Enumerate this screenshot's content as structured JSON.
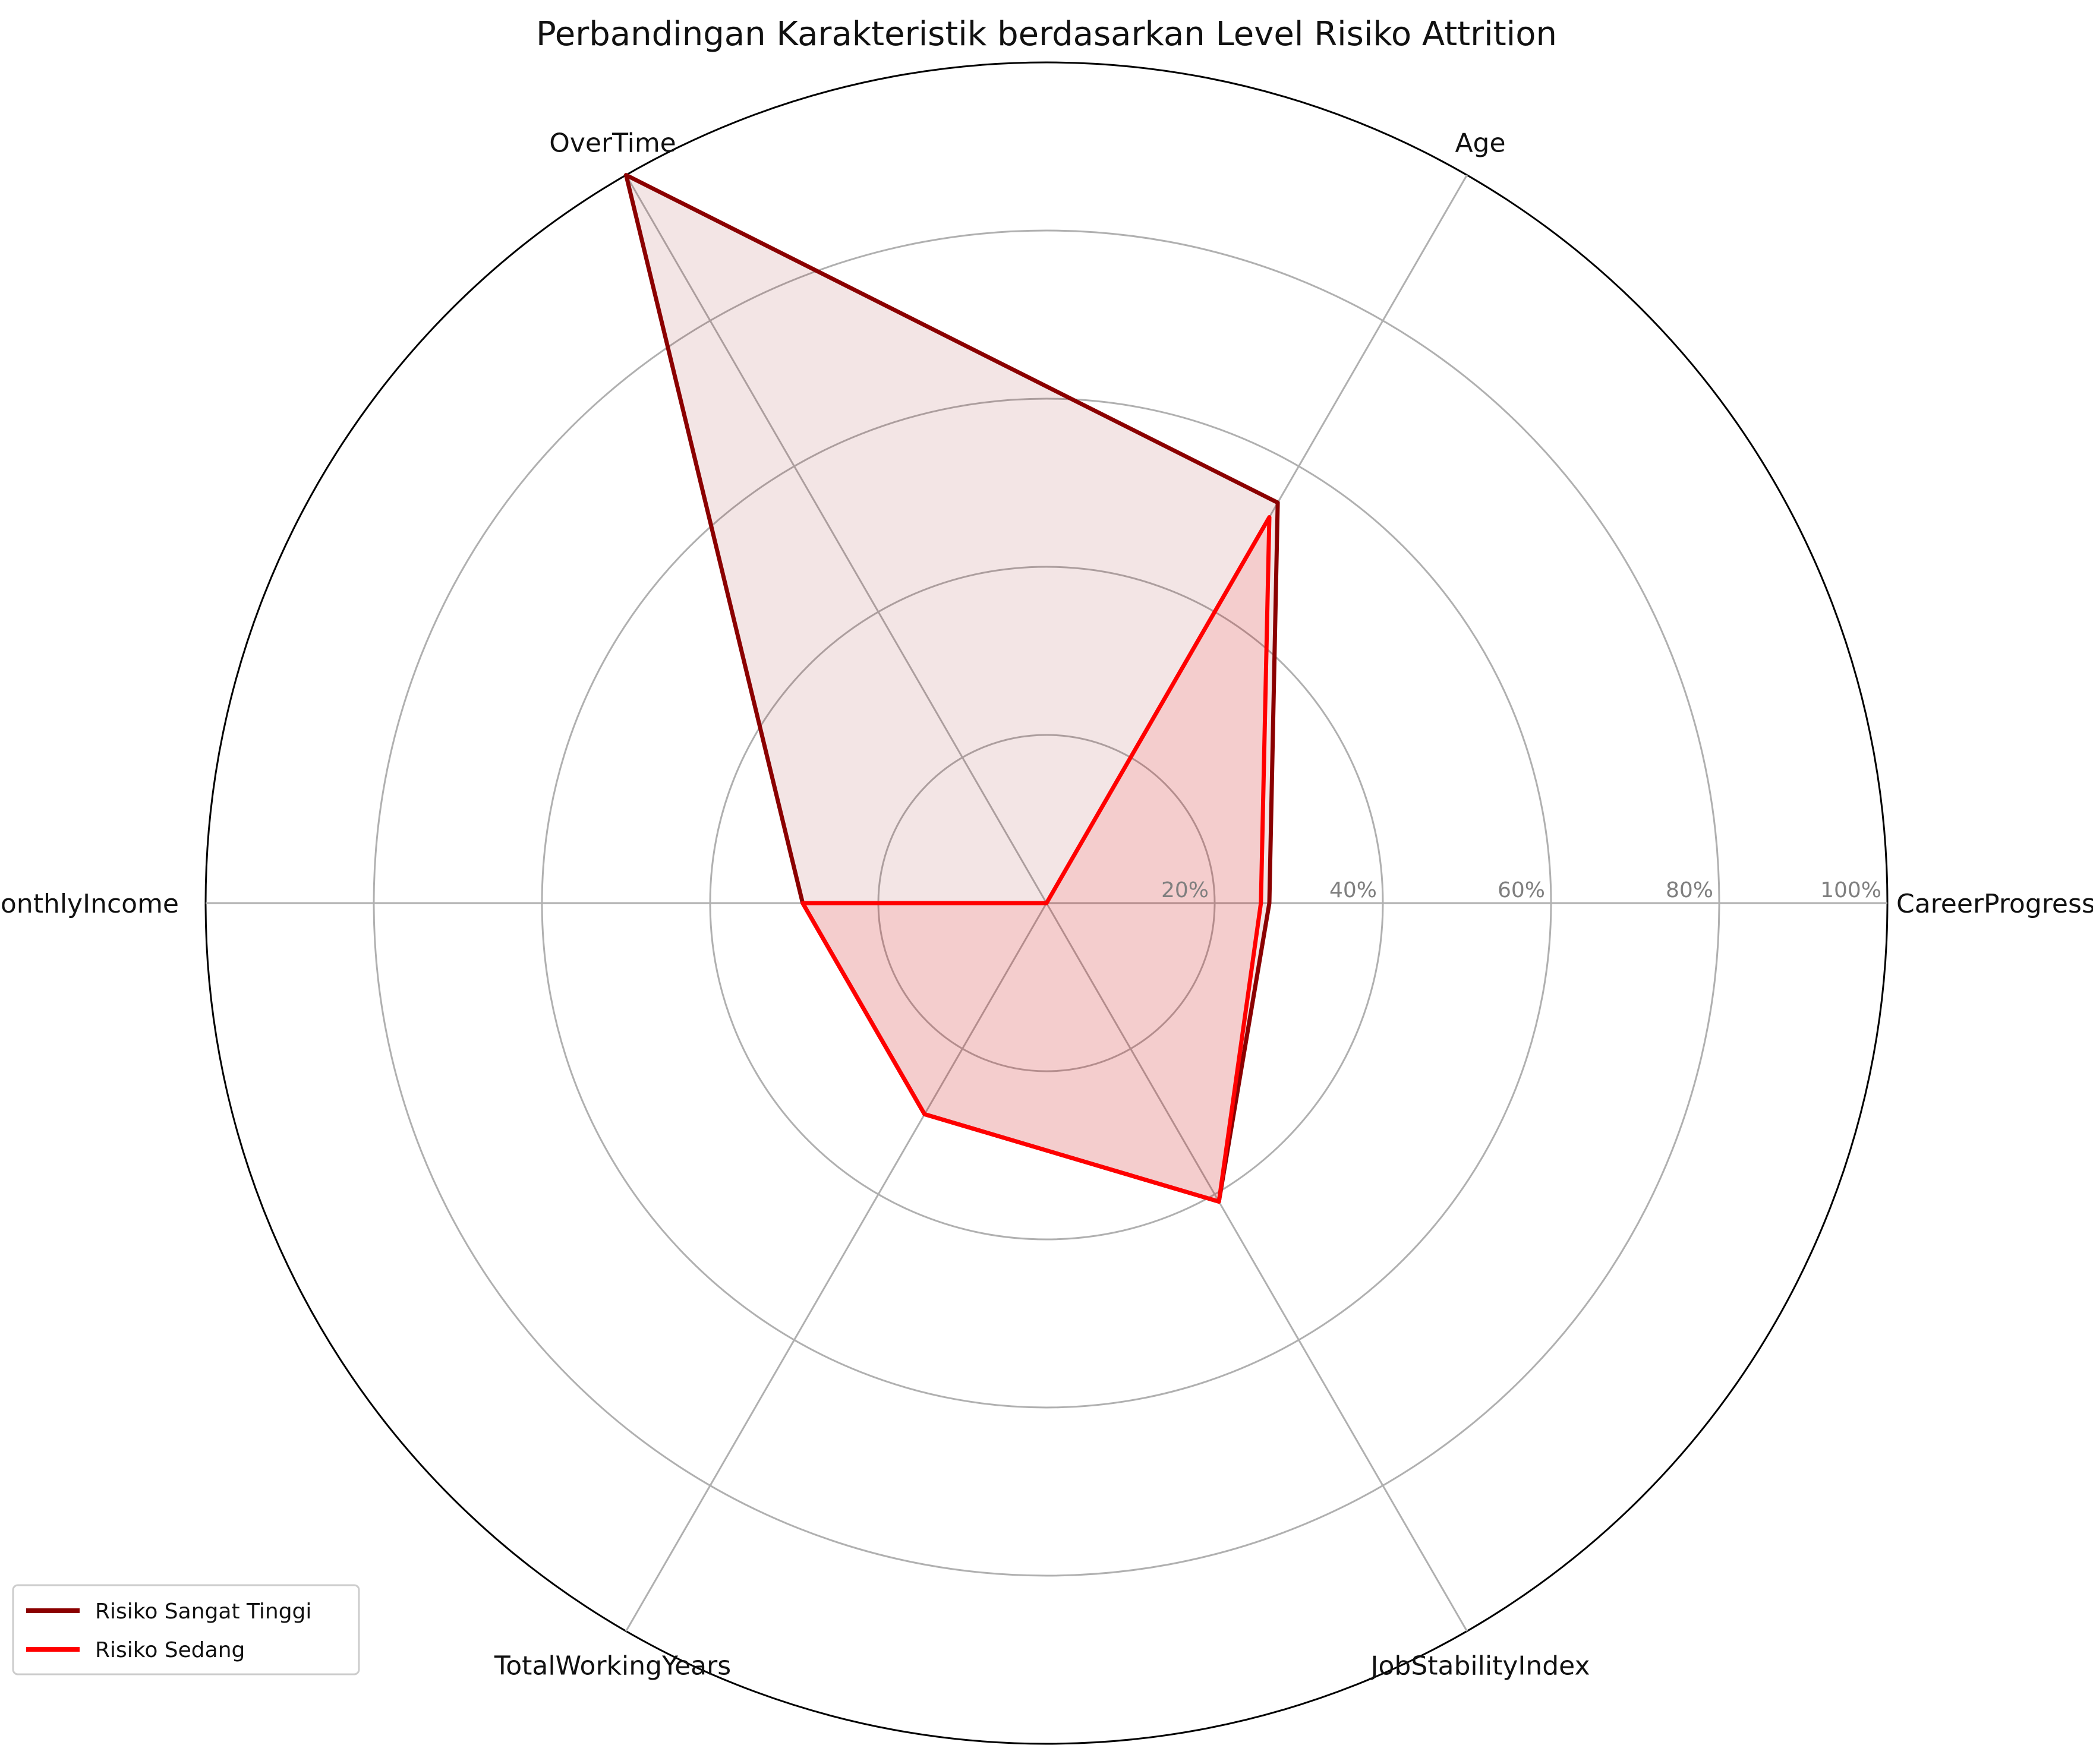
{
  "chart_data": {
    "type": "radar",
    "title": "Perbandingan Karakteristik berdasarkan Level Risiko Attrition",
    "axes": [
      "CareerProgressIndex",
      "Age",
      "OverTime",
      "MonthlyIncome",
      "TotalWorkingYears",
      "JobStabilityIndex"
    ],
    "rlim": [
      0,
      1
    ],
    "rticks": [
      0.2,
      0.4,
      0.6,
      0.8,
      1.0
    ],
    "rtick_labels": [
      "20%",
      "40%",
      "60%",
      "80%",
      "100%"
    ],
    "grid": true,
    "legend_position": "lower-left",
    "series": [
      {
        "name": "Risiko Sangat Tinggi",
        "color": "#8b0000",
        "fill_color": "#8b0000",
        "values": [
          0.265,
          0.55,
          1.0,
          0.29,
          0.29,
          0.41
        ]
      },
      {
        "name": "Risiko Sedang",
        "color": "#ff0000",
        "fill_color": "#ff0000",
        "values": [
          0.255,
          0.53,
          0.0,
          0.29,
          0.29,
          0.41
        ]
      }
    ]
  }
}
